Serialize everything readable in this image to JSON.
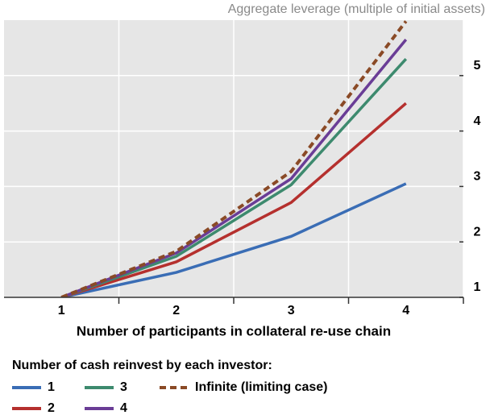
{
  "chart_data": {
    "type": "line",
    "title": "Aggregate leverage (multiple of initial assets)",
    "x_label": "Number of participants in collateral re-use chain",
    "legend_title": "Number of cash reinvest by each investor:",
    "x": [
      1,
      2,
      3,
      4
    ],
    "xlim": [
      0.5,
      4.5
    ],
    "xticks": [
      1,
      2,
      3,
      4
    ],
    "ylim": [
      1,
      6
    ],
    "yticks": [
      1,
      2,
      3,
      4,
      5
    ],
    "grid": true,
    "y_axis_side": "right",
    "series": [
      {
        "name": "1",
        "color": "#3a6db5",
        "values": [
          1,
          1.45,
          2.1,
          3.05
        ]
      },
      {
        "name": "2",
        "color": "#b5302e",
        "values": [
          1,
          1.64,
          2.71,
          4.5
        ]
      },
      {
        "name": "3",
        "color": "#3d8a6e",
        "values": [
          1,
          1.74,
          3.03,
          5.3
        ]
      },
      {
        "name": "4",
        "color": "#6a3d96",
        "values": [
          1,
          1.8,
          3.14,
          5.65
        ]
      },
      {
        "name": "Infinite (limiting case)",
        "color": "#8a4a26",
        "line_style": "dashed",
        "values": [
          1,
          1.83,
          3.27,
          5.98
        ]
      }
    ]
  }
}
